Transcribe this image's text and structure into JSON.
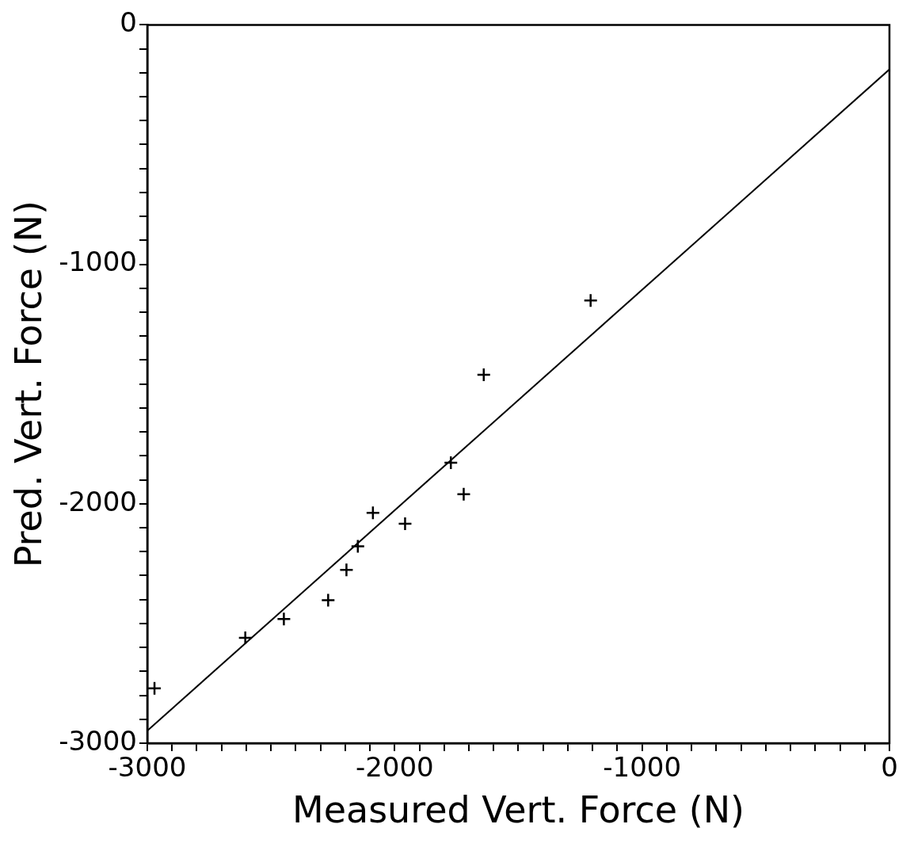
{
  "chart_data": {
    "type": "scatter",
    "xlabel": "Measured Vert. Force (N)",
    "ylabel": "Pred. Vert. Force (N)",
    "series": [
      {
        "type": "scatter",
        "color": "#000000",
        "x": [
          -2971,
          -2604,
          -2448,
          -2269,
          -2195,
          -2149,
          -2088,
          -1958,
          -1773,
          -1721,
          -1640,
          -1208
        ],
        "marker": "cross",
        "values": [
          -2771,
          -2560,
          -2481,
          -2403,
          -2276,
          -2178,
          -2038,
          -2083,
          -1829,
          -1960,
          -1461,
          -1151
        ]
      },
      {
        "type": "line",
        "marker": "none",
        "color": "#000000",
        "x": [
          -3000,
          0
        ],
        "values": [
          -2948,
          -186
        ]
      }
    ],
    "xlim": [
      -3000,
      0
    ],
    "ylim": [
      -3000,
      0
    ],
    "xticks": [
      -3000,
      {
        "value": -2900,
        "label": null
      },
      {
        "value": -2800,
        "label": null
      },
      {
        "value": -2700,
        "label": null
      },
      {
        "value": -2600,
        "label": null
      },
      {
        "value": -2500,
        "label": null
      },
      {
        "value": -2400,
        "label": null
      },
      {
        "value": -2300,
        "label": null
      },
      {
        "value": -2200,
        "label": null
      },
      {
        "value": -2100,
        "label": null
      },
      -2000,
      {
        "value": -1900,
        "label": null
      },
      {
        "value": -1800,
        "label": null
      },
      {
        "value": -1700,
        "label": null
      },
      {
        "value": -1600,
        "label": null
      },
      {
        "value": -1500,
        "label": null
      },
      {
        "value": -1400,
        "label": null
      },
      {
        "value": -1300,
        "label": null
      },
      {
        "value": -1200,
        "label": null
      },
      {
        "value": -1100,
        "label": null
      },
      -1000,
      {
        "value": -900,
        "label": null
      },
      {
        "value": -800,
        "label": null
      },
      {
        "value": -700,
        "label": null
      },
      {
        "value": -600,
        "label": null
      },
      {
        "value": -500,
        "label": null
      },
      {
        "value": -400,
        "label": null
      },
      {
        "value": -300,
        "label": null
      },
      {
        "value": -200,
        "label": null
      },
      {
        "value": -100,
        "label": null
      },
      0
    ],
    "yticks": [
      -3000,
      {
        "value": -2900,
        "label": null
      },
      {
        "value": -2800,
        "label": null
      },
      {
        "value": -2700,
        "label": null
      },
      {
        "value": -2600,
        "label": null
      },
      {
        "value": -2500,
        "label": null
      },
      {
        "value": -2400,
        "label": null
      },
      {
        "value": -2300,
        "label": null
      },
      {
        "value": -2200,
        "label": null
      },
      {
        "value": -2100,
        "label": null
      },
      -2000,
      {
        "value": -1900,
        "label": null
      },
      {
        "value": -1800,
        "label": null
      },
      {
        "value": -1700,
        "label": null
      },
      {
        "value": -1600,
        "label": null
      },
      {
        "value": -1500,
        "label": null
      },
      {
        "value": -1400,
        "label": null
      },
      {
        "value": -1300,
        "label": null
      },
      {
        "value": -1200,
        "label": null
      },
      {
        "value": -1100,
        "label": null
      },
      -1000,
      {
        "value": -900,
        "label": null
      },
      {
        "value": -800,
        "label": null
      },
      {
        "value": -700,
        "label": null
      },
      {
        "value": -600,
        "label": null
      },
      {
        "value": -500,
        "label": null
      },
      {
        "value": -400,
        "label": null
      },
      {
        "value": -300,
        "label": null
      },
      {
        "value": -200,
        "label": null
      },
      {
        "value": -100,
        "label": null
      },
      0
    ],
    "grid": false,
    "legend": false,
    "line_style": "solid"
  }
}
